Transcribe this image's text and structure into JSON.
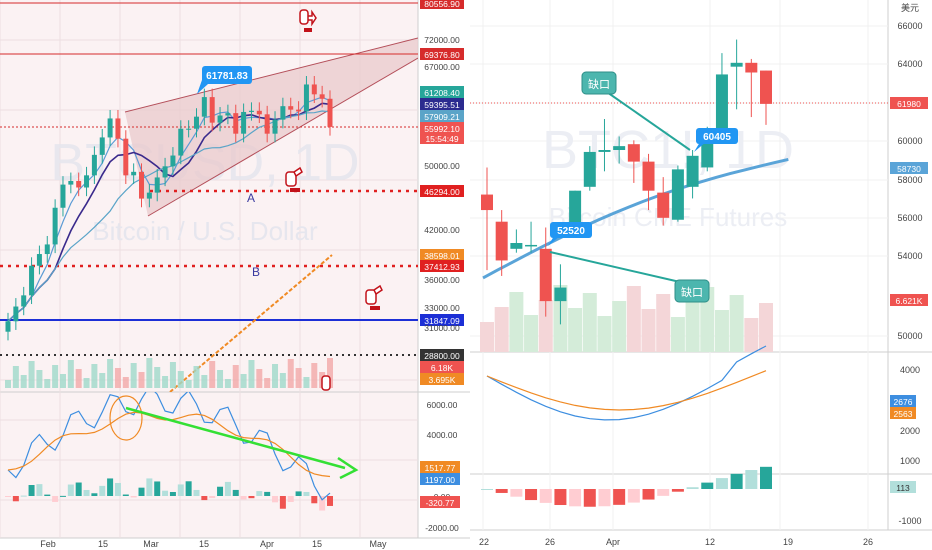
{
  "left_panel": {
    "watermark_main": "BTCUSD, 1D",
    "watermark_sub": "Bitcoin / U.S. Dollar",
    "price_labels": [
      "80556.90",
      "69376.80",
      "61208.40",
      "59395.51",
      "57909.21",
      "55992.10",
      "15:54:49",
      "46294.00",
      "38598.01",
      "37412.93",
      "31847.09",
      "28800.00",
      "6.18K",
      "3.695K"
    ],
    "price_axis_ticks": [
      "72000.00",
      "67000.00",
      "50000.00",
      "42000.00",
      "36000.00",
      "33000.00",
      "31000.00"
    ],
    "macd_labels": [
      "1517.77",
      "1197.00",
      "-320.77"
    ],
    "macd_axis_ticks": [
      "6000.00",
      "4000.00",
      "2000.00",
      "0.00",
      "-2000.00"
    ],
    "x_ticks": [
      "Feb",
      "15",
      "Mar",
      "15",
      "Apr",
      "15",
      "May"
    ],
    "callout_peak": "61781.83",
    "zone_a": "A",
    "zone_b": "B"
  },
  "right_panel": {
    "watermark_main": "BTC1!, 1D",
    "watermark_sub": "Bitcoin CME Futures",
    "currency_label": "美元",
    "price_axis_ticks": [
      "66000",
      "64000",
      "62000",
      "60000",
      "58000",
      "56000",
      "54000",
      "50000"
    ],
    "price_labels": [
      "61980",
      "58730",
      "6.621K"
    ],
    "osc_axis_ticks": [
      "4000",
      "2000",
      "1000",
      "0",
      "-1000"
    ],
    "osc_labels": [
      "2676",
      "2563",
      "113"
    ],
    "x_ticks": [
      "22",
      "26",
      "Apr",
      "12",
      "19",
      "26"
    ],
    "gap_label_1": "缺口",
    "gap_label_2": "缺口",
    "callout_1": "52520",
    "callout_2": "60405"
  },
  "chart_data": [
    {
      "type": "candlestick",
      "title": "BTCUSD, 1D",
      "subtitle": "Bitcoin / U.S. Dollar",
      "ohlc_close_approx": [
        31800,
        33200,
        34300,
        37400,
        38700,
        39800,
        44300,
        47400,
        47900,
        47000,
        48700,
        51700,
        54400,
        57500,
        54200,
        48700,
        49200,
        45500,
        46300,
        48400,
        50000,
        51600,
        55800,
        55800,
        57800,
        61200,
        56800,
        58000,
        58400,
        55000,
        58600,
        58800,
        58200,
        55000,
        57300,
        59600,
        59000,
        58700,
        63500,
        61700,
        60900,
        56100
      ],
      "annotations": [
        "61781.83",
        "A",
        "B"
      ],
      "ylim": [
        27000,
        82000
      ]
    },
    {
      "type": "candlestick",
      "title": "BTC1!, 1D",
      "subtitle": "Bitcoin CME Futures",
      "closes": [
        56500,
        53900,
        54800,
        54700,
        51800,
        52500,
        57500,
        59500,
        59600,
        59800,
        59000,
        57500,
        56100,
        58600,
        59300,
        60405,
        63500,
        64100,
        63600,
        61980
      ],
      "opens": [
        57300,
        55900,
        54500,
        54700,
        54500,
        51800,
        55300,
        57700,
        59500,
        59600,
        59900,
        59000,
        57400,
        56000,
        57700,
        58700,
        60600,
        63900,
        64100,
        63700
      ],
      "highs": [
        58700,
        56500,
        55500,
        55900,
        55600,
        53700,
        57500,
        59800,
        61200,
        60300,
        60100,
        59400,
        58200,
        58800,
        59600,
        60800,
        64600,
        65300,
        64300,
        63700
      ],
      "lows": [
        53400,
        53100,
        54300,
        54300,
        51000,
        50600,
        55300,
        57500,
        58500,
        58900,
        57900,
        56500,
        55700,
        55900,
        57100,
        58500,
        60300,
        61700,
        61300,
        60900
      ],
      "annotations": [
        "52520",
        "60405",
        "缺口",
        "缺口"
      ],
      "ylim": [
        49000,
        67500
      ]
    }
  ]
}
